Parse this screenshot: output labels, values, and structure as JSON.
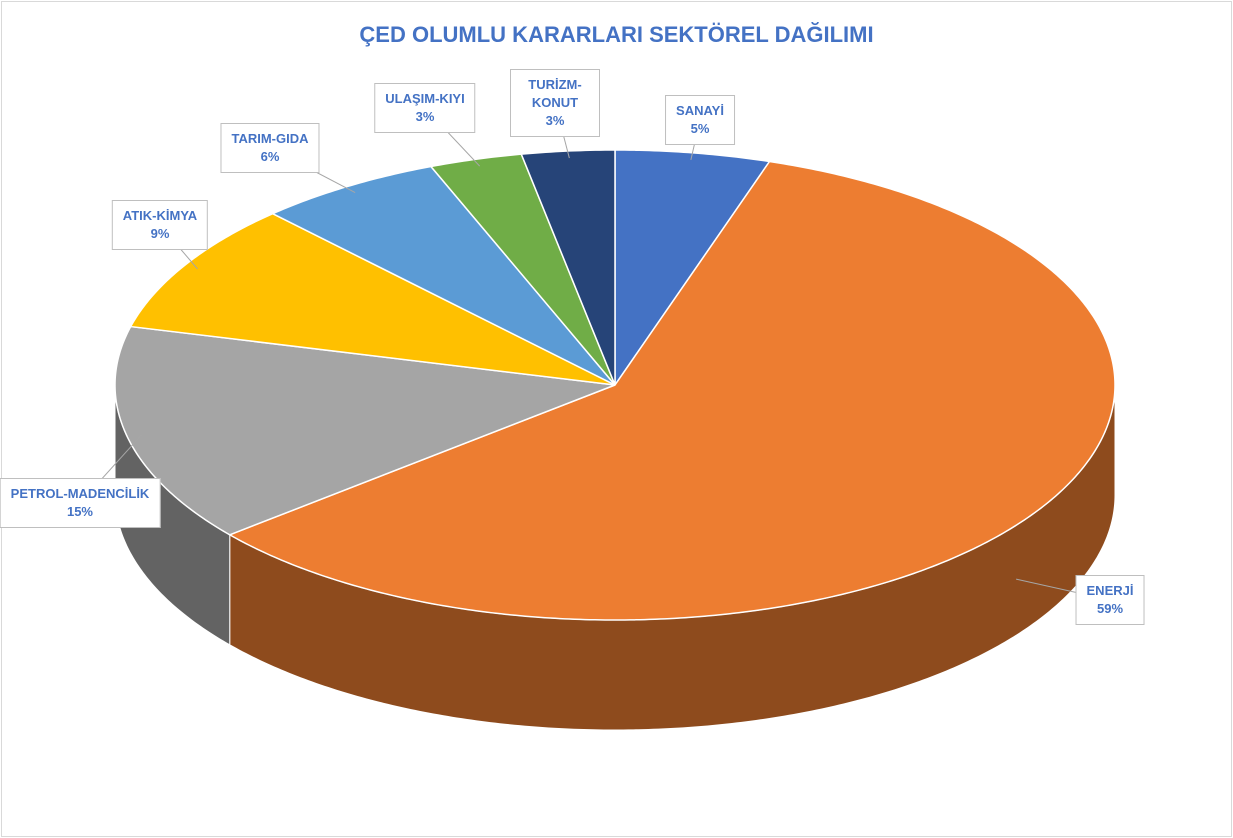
{
  "chart_data": {
    "type": "pie",
    "title": "ÇED OLUMLU KARARLARI SEKTÖREL DAĞILIMI",
    "categories": [
      "SANAYİ",
      "ENERJİ",
      "PETROL-MADENCİLİK",
      "ATIK-KİMYA",
      "TARIM-GIDA",
      "ULAŞIM-KIYI",
      "TURİZM-KONUT"
    ],
    "values": [
      5,
      59,
      15,
      9,
      6,
      3,
      3
    ],
    "value_labels": [
      "5%",
      "59%",
      "15%",
      "9%",
      "6%",
      "3%",
      "3%"
    ],
    "colors": [
      "#4472c4",
      "#ed7d31",
      "#a5a5a5",
      "#ffc000",
      "#5b9bd5",
      "#70ad47",
      "#264478"
    ]
  }
}
